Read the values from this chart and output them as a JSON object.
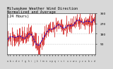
{
  "title": "Milwaukee Weather Wind Direction\nNormalized and Average\n(24 Hours)",
  "title_fontsize": 3.8,
  "background_color": "#d8d8d8",
  "plot_bg_color": "#ffffff",
  "bar_color": "#cc0000",
  "line_color": "#0000dd",
  "ylim": [
    0,
    360
  ],
  "yticks": [
    90,
    180,
    270,
    360
  ],
  "ytick_labels": [
    "90",
    "180",
    "270",
    "360"
  ],
  "num_points": 144,
  "seed": 7,
  "x_label_count": 30
}
